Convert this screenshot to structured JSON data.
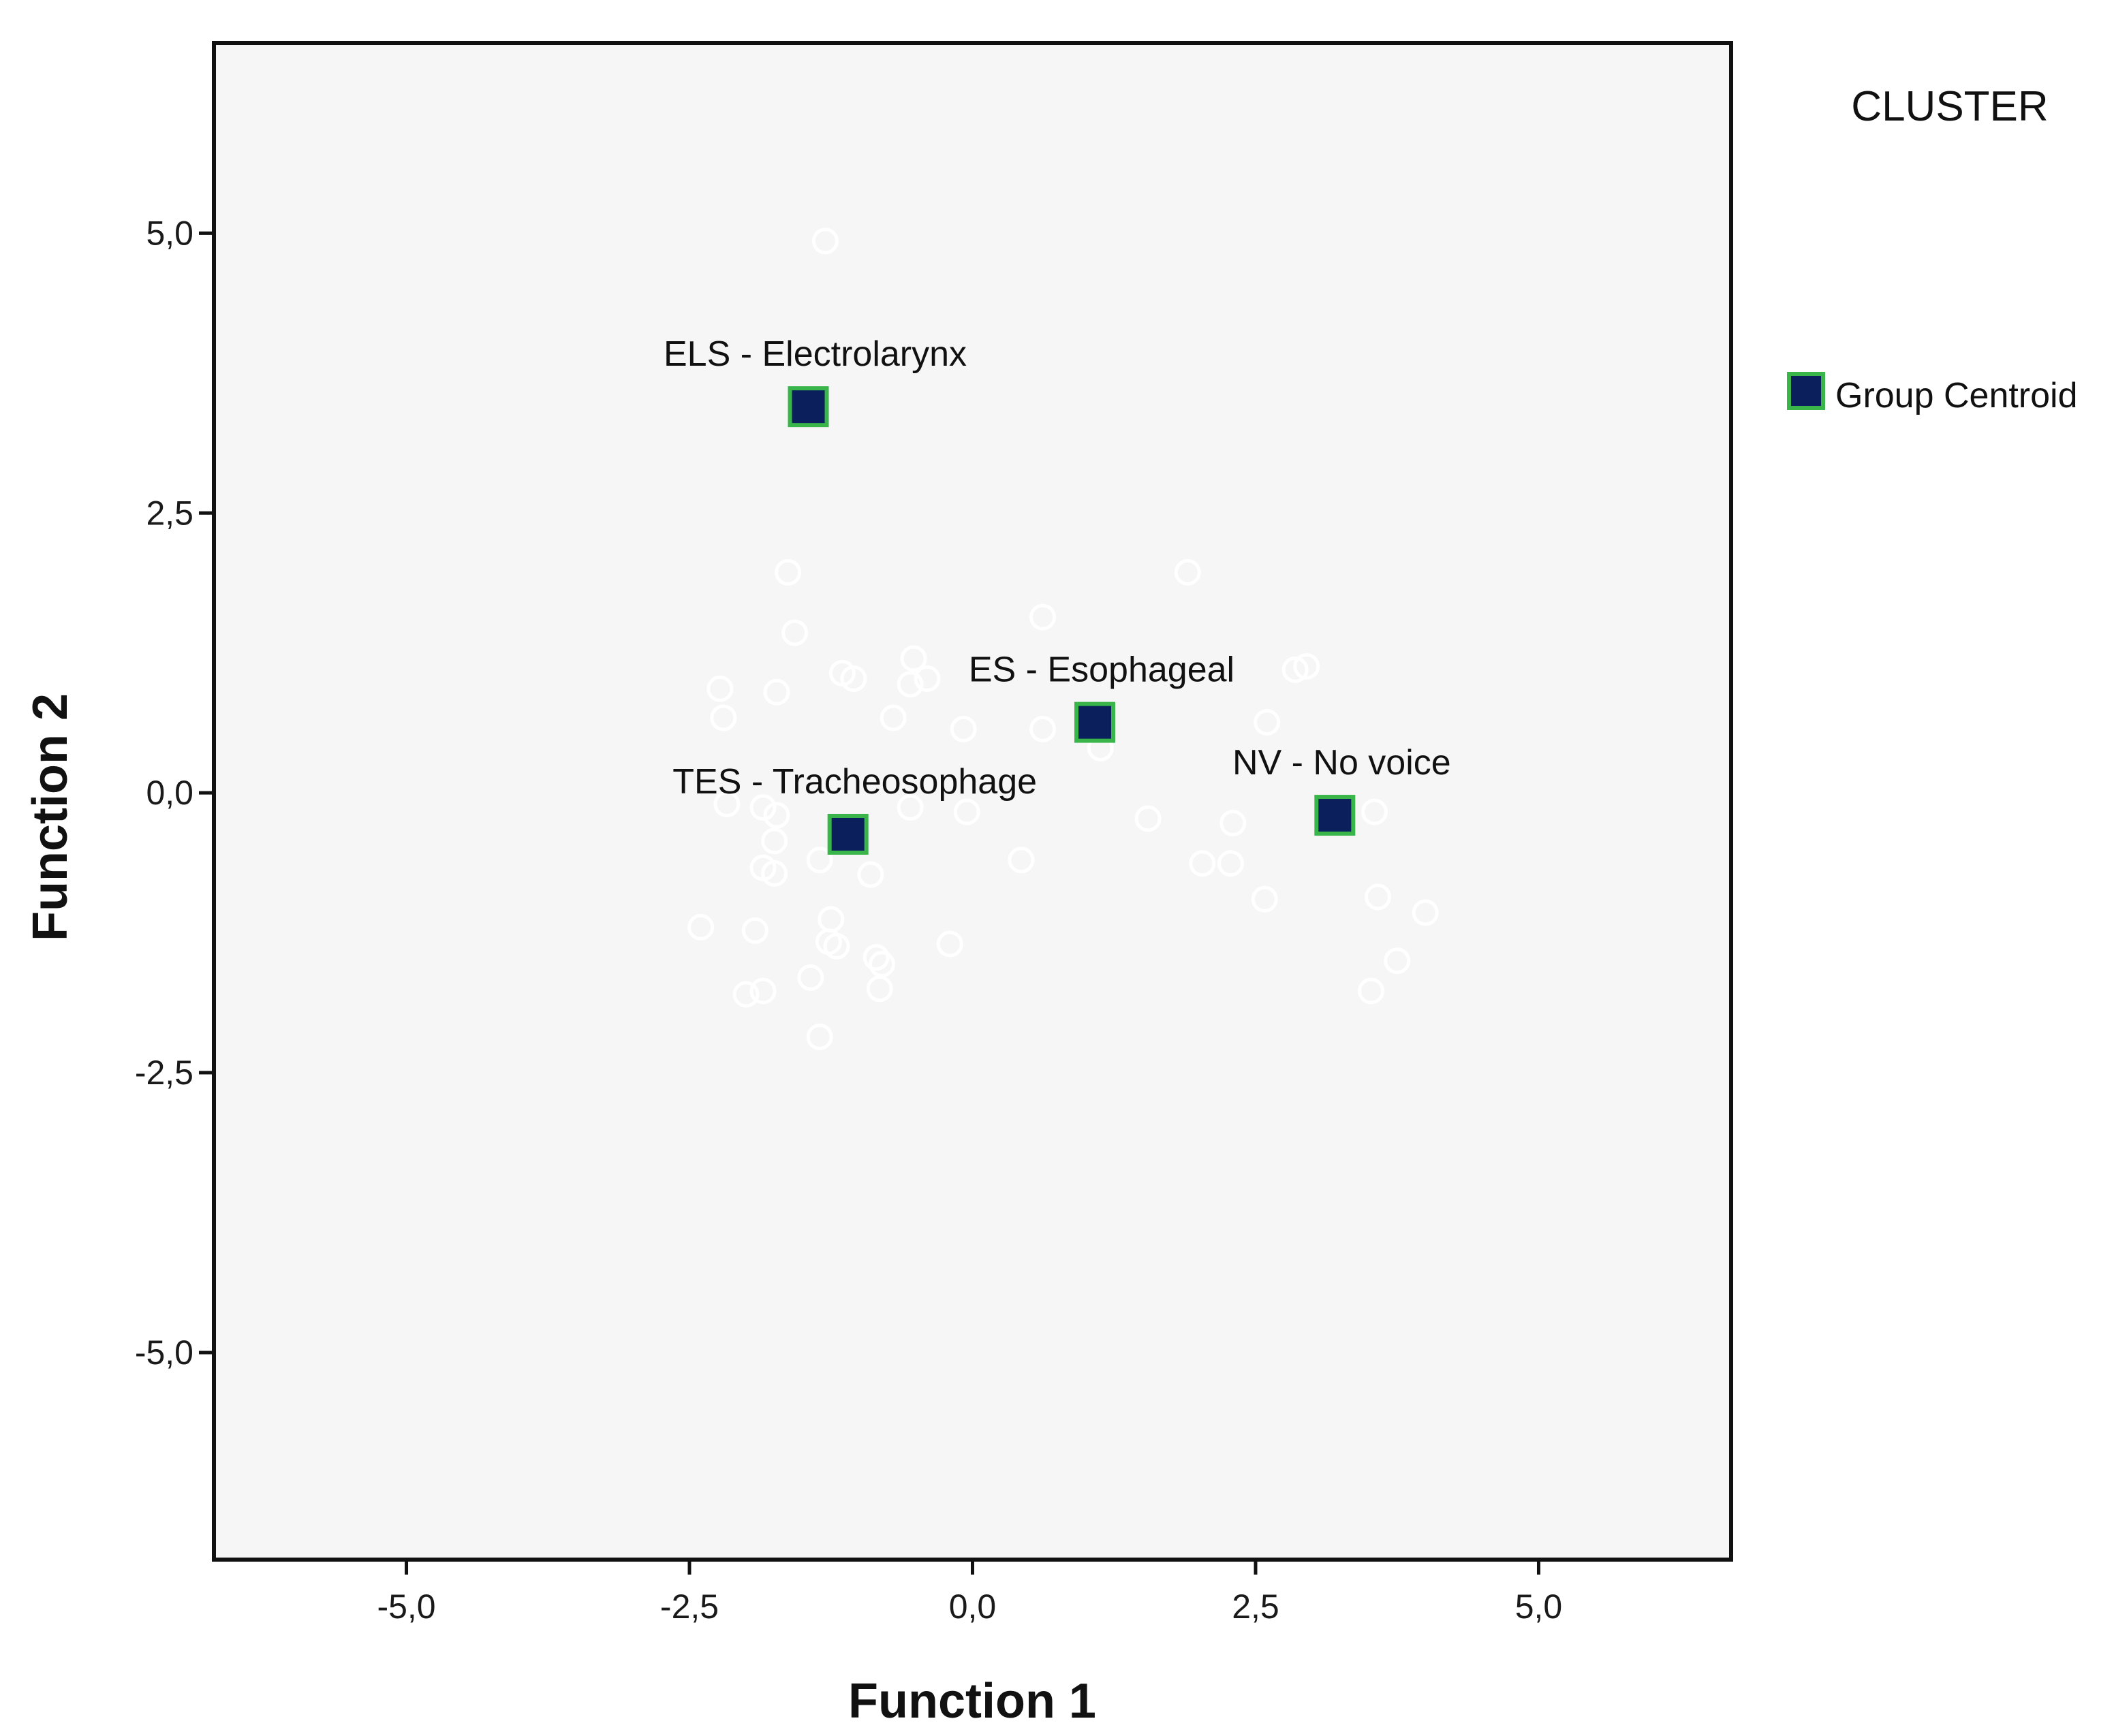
{
  "chart_data": {
    "type": "scatter",
    "title": "",
    "xlabel": "Function 1",
    "ylabel": "Function 2",
    "xlim": [
      -6.7,
      6.7
    ],
    "ylim": [
      -6.85,
      6.7
    ],
    "x_ticks": [
      -5.0,
      -2.5,
      0.0,
      2.5,
      5.0
    ],
    "x_tick_labels": [
      "-5,0",
      "-2,5",
      "0,0",
      "2,5",
      "5,0"
    ],
    "y_ticks": [
      5.0,
      2.5,
      0.0,
      -2.5,
      -5.0
    ],
    "y_tick_labels": [
      "5,0",
      "2,5",
      "0,0",
      "-2,5",
      "-5,0"
    ],
    "grid": false,
    "legend": {
      "title": "CLUSTER",
      "position": "top-right",
      "entries": [
        {
          "label": "Group Centroid",
          "marker": "square"
        }
      ]
    },
    "centroids": [
      {
        "label": "ELS - Electrolarynx",
        "x": -1.45,
        "y": 3.45
      },
      {
        "label": "ES - Esophageal",
        "x": 1.08,
        "y": 0.63
      },
      {
        "label": "TES - Tracheosophage",
        "x": -1.1,
        "y": -0.37
      },
      {
        "label": "NV - No voice",
        "x": 3.2,
        "y": -0.2
      }
    ],
    "points": [
      {
        "x": -1.3,
        "y": 4.93
      },
      {
        "x": -1.63,
        "y": 1.97
      },
      {
        "x": -1.57,
        "y": 1.43
      },
      {
        "x": 0.62,
        "y": 1.57
      },
      {
        "x": 1.9,
        "y": 1.97
      },
      {
        "x": -0.52,
        "y": 1.2
      },
      {
        "x": -1.15,
        "y": 1.07
      },
      {
        "x": -1.05,
        "y": 1.02
      },
      {
        "x": -0.4,
        "y": 1.02
      },
      {
        "x": -0.55,
        "y": 0.97
      },
      {
        "x": 2.85,
        "y": 1.1
      },
      {
        "x": 2.95,
        "y": 1.13
      },
      {
        "x": -2.23,
        "y": 0.93
      },
      {
        "x": -1.73,
        "y": 0.9
      },
      {
        "x": -2.2,
        "y": 0.67
      },
      {
        "x": -0.7,
        "y": 0.67
      },
      {
        "x": 2.6,
        "y": 0.63
      },
      {
        "x": -0.08,
        "y": 0.57
      },
      {
        "x": 0.62,
        "y": 0.57
      },
      {
        "x": 1.13,
        "y": 0.4
      },
      {
        "x": -2.17,
        "y": -0.1
      },
      {
        "x": -1.85,
        "y": -0.13
      },
      {
        "x": -1.73,
        "y": -0.2
      },
      {
        "x": -0.55,
        "y": -0.13
      },
      {
        "x": -0.05,
        "y": -0.17
      },
      {
        "x": 1.55,
        "y": -0.23
      },
      {
        "x": 2.3,
        "y": -0.27
      },
      {
        "x": 3.55,
        "y": -0.17
      },
      {
        "x": -1.75,
        "y": -0.43
      },
      {
        "x": -1.35,
        "y": -0.6
      },
      {
        "x": 0.43,
        "y": -0.6
      },
      {
        "x": 2.03,
        "y": -0.63
      },
      {
        "x": 2.28,
        "y": -0.63
      },
      {
        "x": -1.85,
        "y": -0.67
      },
      {
        "x": -1.75,
        "y": -0.72
      },
      {
        "x": -0.9,
        "y": -0.73
      },
      {
        "x": 2.58,
        "y": -0.95
      },
      {
        "x": 3.58,
        "y": -0.93
      },
      {
        "x": 4.0,
        "y": -1.07
      },
      {
        "x": -2.4,
        "y": -1.2
      },
      {
        "x": -1.92,
        "y": -1.23
      },
      {
        "x": -1.25,
        "y": -1.13
      },
      {
        "x": -1.27,
        "y": -1.33
      },
      {
        "x": -1.2,
        "y": -1.37
      },
      {
        "x": -0.85,
        "y": -1.47
      },
      {
        "x": -0.8,
        "y": -1.53
      },
      {
        "x": -0.2,
        "y": -1.35
      },
      {
        "x": 3.75,
        "y": -1.5
      },
      {
        "x": -1.43,
        "y": -1.65
      },
      {
        "x": -2.0,
        "y": -1.8
      },
      {
        "x": -1.85,
        "y": -1.77
      },
      {
        "x": -0.82,
        "y": -1.75
      },
      {
        "x": 3.52,
        "y": -1.77
      },
      {
        "x": -1.35,
        "y": -2.18
      }
    ],
    "colors": {
      "plot_background": "#f6f6f6",
      "frame": "#111111",
      "centroid_fill": "#0a1f5c",
      "centroid_border": "#39b54a",
      "point_stroke": "#ffffff"
    }
  }
}
